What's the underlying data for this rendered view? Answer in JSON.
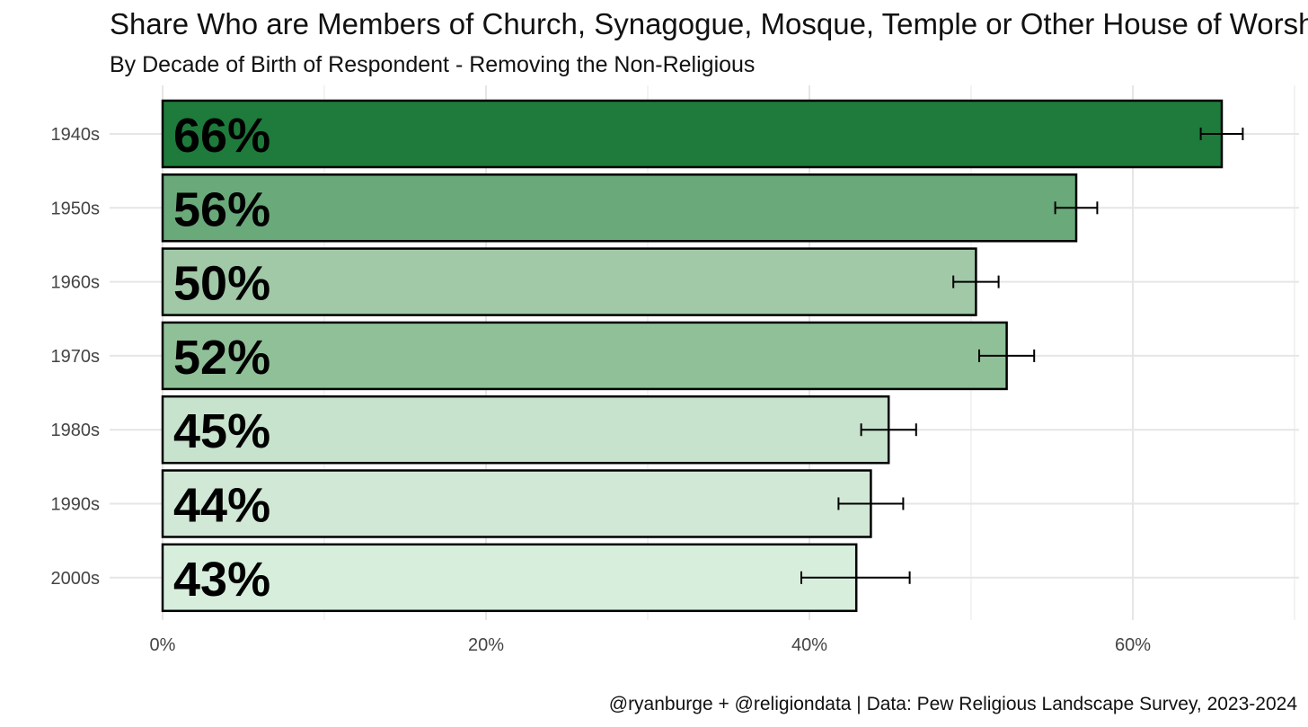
{
  "chart_data": {
    "type": "bar",
    "orientation": "horizontal",
    "title": "Share Who are Members of Church, Synagogue, Mosque, Temple or Other House of Worship",
    "subtitle": "By Decade of Birth of Respondent - Removing the Non-Religious",
    "caption": "@ryanburge + @religiondata | Data: Pew Religious Landscape Survey, 2023-2024",
    "xlabel": "",
    "ylabel": "",
    "xlim": [
      0,
      0.7
    ],
    "x_ticks": [
      0,
      0.2,
      0.4,
      0.6
    ],
    "x_tick_labels": [
      "0%",
      "20%",
      "40%",
      "60%"
    ],
    "categories": [
      "1940s",
      "1950s",
      "1960s",
      "1970s",
      "1980s",
      "1990s",
      "2000s"
    ],
    "values": [
      0.655,
      0.565,
      0.503,
      0.522,
      0.449,
      0.438,
      0.429
    ],
    "value_labels": [
      "66%",
      "56%",
      "50%",
      "52%",
      "45%",
      "44%",
      "43%"
    ],
    "error_low": [
      0.642,
      0.552,
      0.489,
      0.505,
      0.432,
      0.418,
      0.395
    ],
    "error_high": [
      0.668,
      0.578,
      0.517,
      0.539,
      0.466,
      0.458,
      0.462
    ],
    "colors": [
      "#1e7b3b",
      "#6aa97a",
      "#a1c9a7",
      "#90c097",
      "#c7e3cd",
      "#d0e8d5",
      "#d7eedd"
    ],
    "grid": true,
    "legend": "none"
  }
}
